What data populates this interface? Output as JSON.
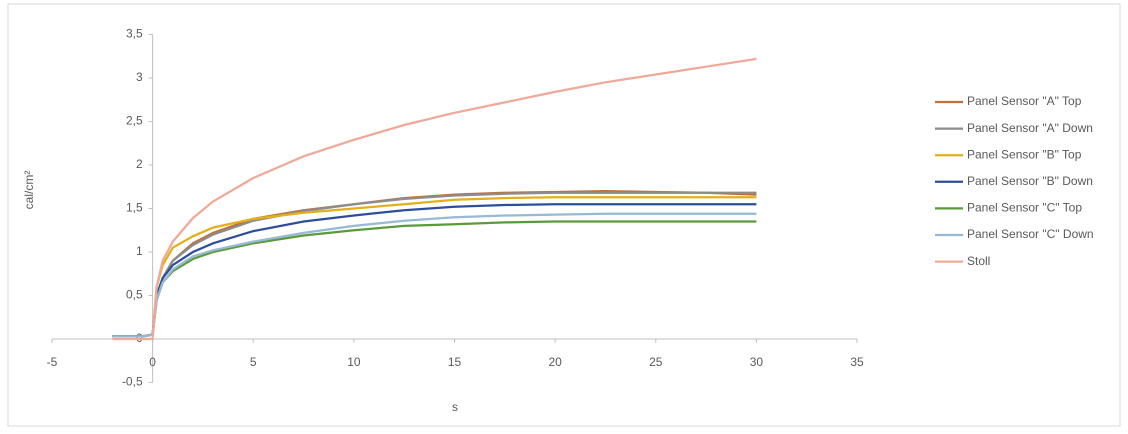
{
  "chart_data": {
    "type": "line",
    "xlabel": "s",
    "ylabel": "cal/cm²",
    "x": [
      -2,
      -0.5,
      0,
      0.2,
      0.5,
      1,
      2,
      3,
      5,
      7.5,
      10,
      12.5,
      15,
      17.5,
      20,
      22.5,
      25,
      27.5,
      30
    ],
    "series": [
      {
        "name": "Panel Sensor \"A\" Top",
        "color": "#c0703a",
        "values": [
          0.03,
          0.03,
          0.05,
          0.5,
          0.7,
          0.9,
          1.1,
          1.22,
          1.38,
          1.48,
          1.55,
          1.62,
          1.66,
          1.68,
          1.69,
          1.7,
          1.69,
          1.68,
          1.66
        ]
      },
      {
        "name": "Panel Sensor \"A\" Down",
        "color": "#8c8c8c",
        "values": [
          0.03,
          0.03,
          0.05,
          0.5,
          0.7,
          0.9,
          1.08,
          1.2,
          1.36,
          1.47,
          1.55,
          1.61,
          1.65,
          1.67,
          1.68,
          1.68,
          1.68,
          1.68,
          1.68
        ]
      },
      {
        "name": "Panel Sensor \"B\" Top",
        "color": "#e3b01b",
        "values": [
          0.03,
          0.03,
          0.05,
          0.6,
          0.85,
          1.05,
          1.18,
          1.28,
          1.38,
          1.45,
          1.5,
          1.55,
          1.6,
          1.62,
          1.63,
          1.63,
          1.63,
          1.63,
          1.63
        ]
      },
      {
        "name": "Panel Sensor \"B\" Down",
        "color": "#2e4e9c",
        "values": [
          0.03,
          0.03,
          0.05,
          0.5,
          0.7,
          0.85,
          1.0,
          1.1,
          1.24,
          1.35,
          1.42,
          1.48,
          1.52,
          1.54,
          1.55,
          1.55,
          1.55,
          1.55,
          1.55
        ]
      },
      {
        "name": "Panel Sensor \"C\" Top",
        "color": "#5b9a3a",
        "values": [
          0.03,
          0.03,
          0.05,
          0.45,
          0.65,
          0.78,
          0.92,
          1.0,
          1.1,
          1.19,
          1.25,
          1.3,
          1.32,
          1.34,
          1.35,
          1.35,
          1.35,
          1.35,
          1.35
        ]
      },
      {
        "name": "Panel Sensor \"C\" Down",
        "color": "#97b9d3",
        "values": [
          0.03,
          0.03,
          0.05,
          0.45,
          0.65,
          0.8,
          0.95,
          1.02,
          1.12,
          1.22,
          1.3,
          1.36,
          1.4,
          1.42,
          1.43,
          1.44,
          1.44,
          1.44,
          1.44
        ]
      },
      {
        "name": "Stoll",
        "color": "#f0a898",
        "values": [
          0,
          0,
          0,
          0.6,
          0.9,
          1.12,
          1.39,
          1.58,
          1.85,
          2.1,
          2.29,
          2.46,
          2.6,
          2.72,
          2.84,
          2.95,
          3.04,
          3.13,
          3.22
        ]
      }
    ],
    "xlim": [
      -5,
      35
    ],
    "xticks": [
      -5,
      0,
      5,
      10,
      15,
      20,
      25,
      30,
      35
    ],
    "ylim": [
      -0.5,
      3.5
    ],
    "yticks": [
      {
        "value": -0.5,
        "label": "-0,5"
      },
      0,
      {
        "value": 0.5,
        "label": "0,5"
      },
      1,
      {
        "value": 1.5,
        "label": "1,5"
      },
      2,
      {
        "value": 2.5,
        "label": "2,5"
      },
      3,
      {
        "value": 3.5,
        "label": "3,5"
      }
    ],
    "legend": "right"
  }
}
